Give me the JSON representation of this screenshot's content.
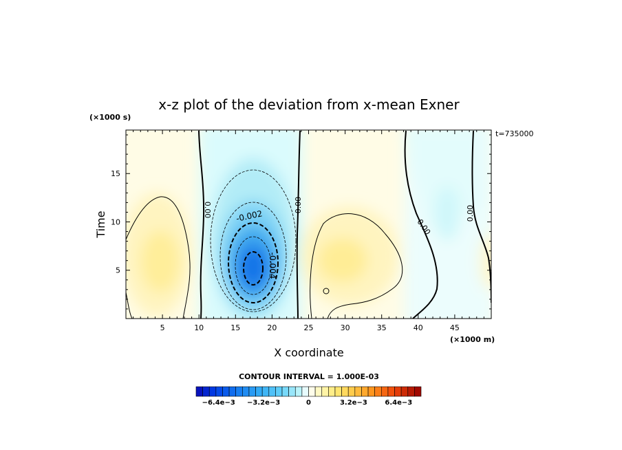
{
  "chart_data": {
    "type": "heatmap",
    "title": "x-z plot of the deviation from x-mean Exner",
    "xlabel": "X coordinate",
    "ylabel": "Time",
    "x_unit": "(×1000 m)",
    "y_unit": "(×1000 s)",
    "timestamp": "t=735000",
    "xlim": [
      0,
      50
    ],
    "ylim": [
      0,
      19.5
    ],
    "x_ticks": [
      "5",
      "10",
      "15",
      "20",
      "25",
      "30",
      "35",
      "40",
      "45"
    ],
    "y_ticks": [
      "5",
      "10",
      "15"
    ],
    "contour_interval": "CONTOUR INTERVAL = 1.000E-03",
    "colorbar": {
      "range": [
        -0.008,
        0.008
      ],
      "tick_labels": [
        "−6.4e−3",
        "−3.2e−3",
        "0",
        "3.2e−3",
        "6.4e−3"
      ],
      "tick_values": [
        -0.0064,
        -0.0032,
        0,
        0.0032,
        0.0064
      ]
    },
    "contour_labels": [
      "0.00",
      "-0.002",
      "-0.004",
      "0.00",
      "0.00",
      "0.00"
    ],
    "features": [
      {
        "name": "negative-center",
        "x": 17.3,
        "y": 5.5,
        "value": -0.0068
      },
      {
        "name": "positive-left",
        "x": 4.0,
        "y": 6.0,
        "value": 0.0015
      },
      {
        "name": "positive-middle",
        "x": 30.0,
        "y": 6.0,
        "value": 0.0018
      },
      {
        "name": "negative-right",
        "x": 43.5,
        "y": 10.0,
        "value": -0.0008
      }
    ]
  }
}
